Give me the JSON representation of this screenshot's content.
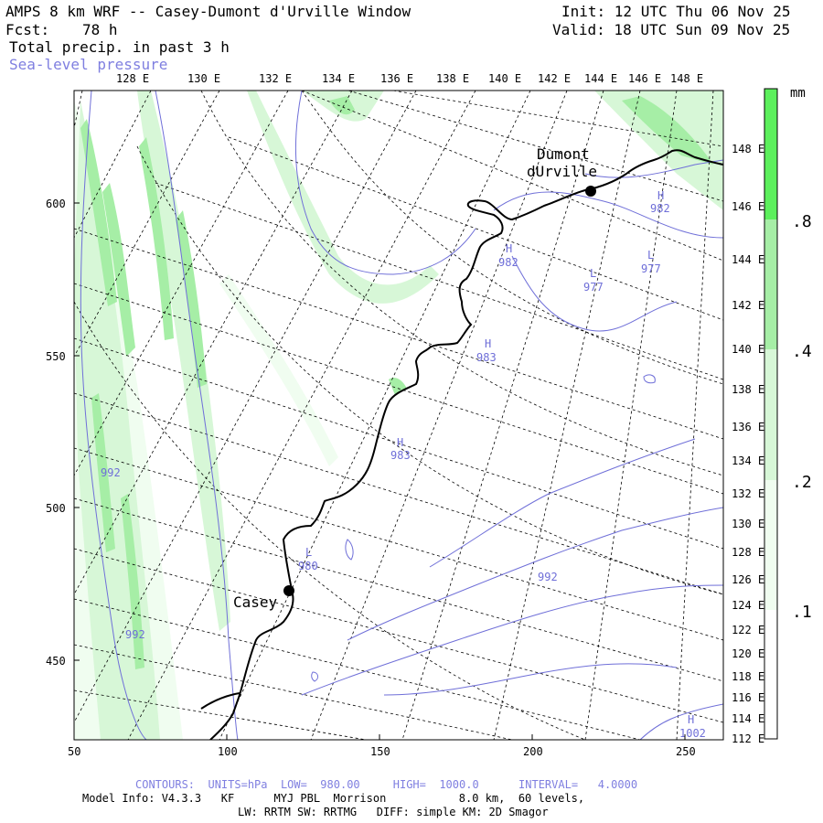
{
  "header": {
    "title": "AMPS 8 km WRF -- Casey-Dumont d'Urville Window",
    "init": "Init: 12 UTC Thu 06 Nov 25",
    "fcst_label": "Fcst:",
    "fcst_value": "78 h",
    "valid": "Valid: 18 UTC Sun 09 Nov 25",
    "field1": "Total precip. in past 3 h",
    "field2": "Sea-level pressure"
  },
  "colors": {
    "precip_01": "#f0fdf0",
    "precip_02": "#d7f7d7",
    "precip_04": "#a6eea6",
    "precip_08": "#5cf05c",
    "isobar": "#6f6fd8",
    "grid": "#000000",
    "coast": "#000000"
  },
  "axes": {
    "x_ticks": [
      "50",
      "100",
      "150",
      "200",
      "250"
    ],
    "y_ticks": [
      "600",
      "550",
      "500",
      "450"
    ],
    "top_lon_labels": [
      "128 E",
      "130 E",
      "132 E",
      "134 E",
      "136 E",
      "138 E",
      "140 E",
      "142 E",
      "144 E",
      "146 E",
      "148 E"
    ],
    "right_lon_labels": [
      "148 E",
      "146 E",
      "144 E",
      "142 E",
      "140 E",
      "138 E",
      "136 E",
      "134 E",
      "132 E",
      "130 E",
      "128 E",
      "126 E",
      "124 E",
      "122 E",
      "120 E",
      "118 E",
      "116 E",
      "114 E",
      "112 E"
    ]
  },
  "stations": [
    {
      "name_line1": "Dumont",
      "name_line2": "dUrville"
    },
    {
      "name_line1": "Casey",
      "name_line2": ""
    }
  ],
  "pressure_labels": [
    {
      "type": "H",
      "value": "982"
    },
    {
      "type": "H",
      "value": "982"
    },
    {
      "type": "L",
      "value": "977"
    },
    {
      "type": "L",
      "value": "977"
    },
    {
      "type": "H",
      "value": "983"
    },
    {
      "type": "H",
      "value": "983"
    },
    {
      "type": "L",
      "value": "980"
    },
    {
      "type": "",
      "value": "992"
    },
    {
      "type": "",
      "value": "992"
    },
    {
      "type": "",
      "value": "992"
    },
    {
      "type": "H",
      "value": "1002"
    }
  ],
  "colorbar": {
    "unit": "mm",
    "labels": [
      ".8",
      ".4",
      ".2",
      ".1"
    ]
  },
  "footer": {
    "contours": "CONTOURS:  UNITS=hPa  LOW=  980.00     HIGH=  1000.0      INTERVAL=   4.0000",
    "model_info": "Model Info: V4.3.3   KF      MYJ PBL  Morrison           8.0 km,  60 levels,",
    "physics": "LW: RRTM SW: RRTMG   DIFF: simple KM: 2D Smagor"
  }
}
